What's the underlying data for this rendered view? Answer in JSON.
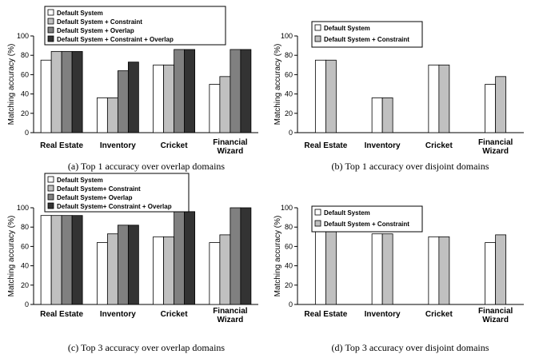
{
  "chart_data": [
    {
      "type": "bar",
      "caption": "(a) Top 1 accuracy over overlap domains",
      "ylabel": "Matching accuracy (%)",
      "ylim": [
        0,
        100
      ],
      "yticks": [
        "0",
        "20",
        "40",
        "60",
        "80",
        "100"
      ],
      "categories": [
        "Real Estate",
        "Inventory",
        "Cricket",
        "Financial Wizard"
      ],
      "legend_position": "top-left",
      "series": [
        {
          "name": "Default System",
          "color": "#ffffff",
          "values": [
            75,
            36,
            70,
            50
          ]
        },
        {
          "name": "Default System + Constraint",
          "color": "#c0c0c0",
          "values": [
            84,
            36,
            70,
            58
          ]
        },
        {
          "name": "Default System + Overlap",
          "color": "#808080",
          "values": [
            84,
            64,
            86,
            86
          ]
        },
        {
          "name": "Default System + Constraint + Overlap",
          "color": "#333333",
          "values": [
            84,
            73,
            86,
            86
          ]
        }
      ]
    },
    {
      "type": "bar",
      "caption": "(b) Top 1 accuracy over disjoint domains",
      "ylabel": "Matching accuracy (%)",
      "ylim": [
        0,
        100
      ],
      "yticks": [
        "0",
        "20",
        "40",
        "60",
        "80",
        "100"
      ],
      "categories": [
        "Real Estate",
        "Inventory",
        "Cricket",
        "Financial Wizard"
      ],
      "legend_position": "top-left",
      "series": [
        {
          "name": "Default System",
          "color": "#ffffff",
          "values": [
            75,
            36,
            70,
            50
          ]
        },
        {
          "name": "Default System + Constraint",
          "color": "#c0c0c0",
          "values": [
            75,
            36,
            70,
            58
          ]
        }
      ]
    },
    {
      "type": "bar",
      "caption": "(c) Top 3 accuracy over overlap domains",
      "ylabel": "Matching accuracy (%)",
      "ylim": [
        0,
        100
      ],
      "yticks": [
        "0",
        "20",
        "40",
        "60",
        "80",
        "100"
      ],
      "categories": [
        "Real Estate",
        "Inventory",
        "Cricket",
        "Financial Wizard"
      ],
      "legend_position": "top-left",
      "series": [
        {
          "name": "Default System",
          "color": "#ffffff",
          "values": [
            92,
            64,
            70,
            64
          ]
        },
        {
          "name": "Default System+ Constraint",
          "color": "#c0c0c0",
          "values": [
            92,
            73,
            70,
            72
          ]
        },
        {
          "name": "Default System+ Overlap",
          "color": "#808080",
          "values": [
            92,
            82,
            96,
            100
          ]
        },
        {
          "name": "Default System+ Constraint + Overlap",
          "color": "#333333",
          "values": [
            92,
            82,
            96,
            100
          ]
        }
      ]
    },
    {
      "type": "bar",
      "caption": "(d) Top 3 accuracy over disjoint domains",
      "ylabel": "Matching accuracy (%)",
      "ylim": [
        0,
        100
      ],
      "yticks": [
        "0",
        "20",
        "40",
        "60",
        "80",
        "100"
      ],
      "categories": [
        "Real Estate",
        "Inventory",
        "Cricket",
        "Financial Wizard"
      ],
      "legend_position": "top-left",
      "series": [
        {
          "name": "Default System",
          "color": "#ffffff",
          "values": [
            84,
            73,
            70,
            64
          ]
        },
        {
          "name": "Default System + Constraint",
          "color": "#c0c0c0",
          "values": [
            84,
            73,
            70,
            72
          ]
        }
      ]
    }
  ]
}
